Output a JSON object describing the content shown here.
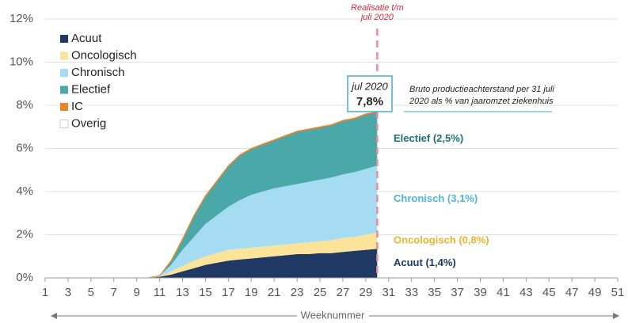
{
  "chart_data": {
    "type": "stacked_area",
    "xlabel": "Weeknummer",
    "x": [
      10,
      11,
      12,
      13,
      14,
      15,
      16,
      17,
      18,
      19,
      20,
      21,
      22,
      23,
      24,
      25,
      26,
      27,
      28,
      29,
      30
    ],
    "xlim": [
      1,
      51
    ],
    "xticks": [
      1,
      3,
      5,
      7,
      9,
      11,
      13,
      15,
      17,
      19,
      21,
      23,
      25,
      27,
      29,
      31,
      33,
      35,
      37,
      39,
      41,
      43,
      45,
      47,
      49,
      51
    ],
    "ylim": [
      0,
      12
    ],
    "yticks": [
      {
        "value": 0,
        "label": "0%"
      },
      {
        "value": 2,
        "label": "2%"
      },
      {
        "value": 4,
        "label": "4%"
      },
      {
        "value": 6,
        "label": "6%"
      },
      {
        "value": 8,
        "label": "8%"
      },
      {
        "value": 10,
        "label": "10%"
      },
      {
        "value": 12,
        "label": "12%"
      }
    ],
    "grid": true,
    "legend": "upper left",
    "series": [
      {
        "name": "Acuut",
        "color": "#1f3864",
        "annotation": "Acuut (1,4%)",
        "annotation_color": "#1f3864",
        "values": [
          0,
          0.05,
          0.15,
          0.3,
          0.45,
          0.6,
          0.7,
          0.8,
          0.85,
          0.9,
          0.95,
          1.0,
          1.05,
          1.1,
          1.1,
          1.15,
          1.15,
          1.2,
          1.25,
          1.3,
          1.35
        ]
      },
      {
        "name": "Oncologisch",
        "color": "#fbe49a",
        "annotation": "Oncologisch (0,8%)",
        "annotation_color": "#e8b52e",
        "values": [
          0,
          0,
          0.15,
          0.25,
          0.35,
          0.4,
          0.45,
          0.5,
          0.5,
          0.5,
          0.5,
          0.5,
          0.5,
          0.5,
          0.55,
          0.55,
          0.6,
          0.65,
          0.65,
          0.7,
          0.75
        ]
      },
      {
        "name": "Chronisch",
        "color": "#a6dcf2",
        "annotation": "Chronisch (3,1%)",
        "annotation_color": "#4cb6da",
        "values": [
          0,
          0.05,
          0.3,
          0.75,
          1.1,
          1.5,
          1.75,
          2.0,
          2.25,
          2.45,
          2.55,
          2.65,
          2.7,
          2.75,
          2.8,
          2.85,
          2.9,
          2.95,
          3.0,
          3.05,
          3.1
        ]
      },
      {
        "name": "Electief",
        "color": "#4aa8a8",
        "annotation": "Electief (2,5%)",
        "annotation_color": "#1f6f78",
        "values": [
          0,
          0,
          0.17,
          0.47,
          0.97,
          1.27,
          1.57,
          1.87,
          2.07,
          2.12,
          2.17,
          2.22,
          2.32,
          2.42,
          2.42,
          2.42,
          2.42,
          2.47,
          2.47,
          2.52,
          2.47
        ]
      },
      {
        "name": "IC",
        "color": "#e8832e",
        "values": [
          0,
          0,
          0.03,
          0.03,
          0.03,
          0.03,
          0.03,
          0.03,
          0.03,
          0.03,
          0.03,
          0.03,
          0.03,
          0.03,
          0.03,
          0.03,
          0.03,
          0.03,
          0.03,
          0.03,
          0.03
        ]
      },
      {
        "name": "Overig",
        "color": "#ffffff",
        "values": [
          0,
          0,
          0,
          0,
          0,
          0,
          0,
          0,
          0,
          0,
          0,
          0,
          0,
          0,
          0,
          0,
          0,
          0,
          0,
          0,
          0
        ]
      }
    ],
    "reference_x": 30,
    "reference_label": [
      "Realisatie t/m",
      "juli 2020"
    ],
    "callout": {
      "date": "jul 2020",
      "value_label": "7,8%"
    },
    "note": [
      "Bruto productieachterstand per 31 juli",
      "2020 als % van jaaromzet ziekenhuis"
    ]
  }
}
